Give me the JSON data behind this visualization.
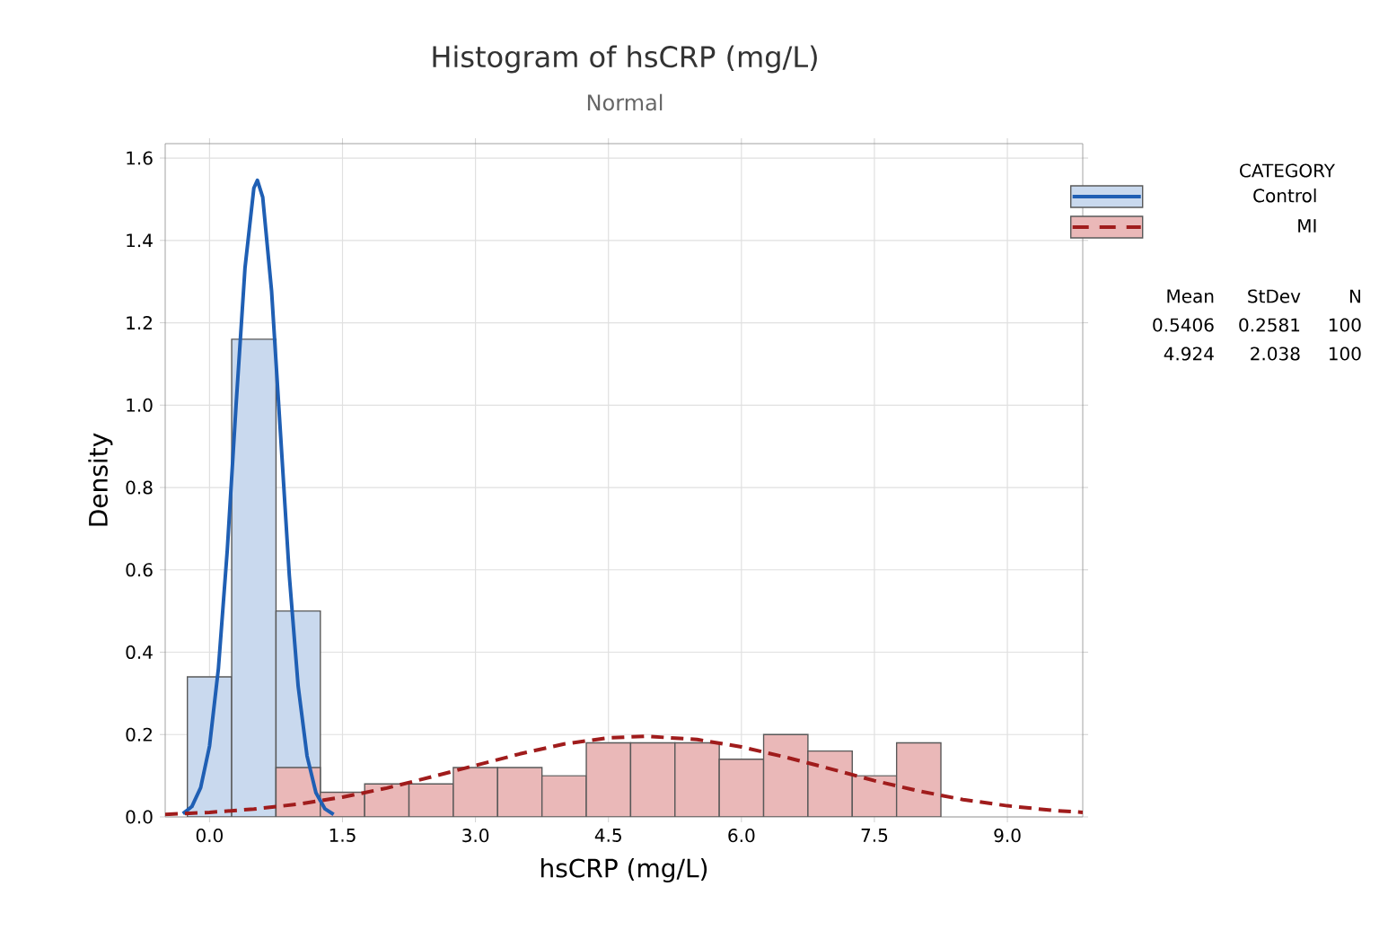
{
  "chart_data": {
    "type": "histogram",
    "title": "Histogram of hsCRP (mg/L)",
    "subtitle": "Normal",
    "xlabel": "hsCRP (mg/L)",
    "ylabel": "Density",
    "legend_title": "CATEGORY",
    "series": [
      {
        "name": "Control",
        "color": "#c9d9ee",
        "bins": [
          -0.25,
          0.25,
          0.75,
          1.25
        ],
        "values": [
          0.34,
          1.16,
          0.5
        ]
      },
      {
        "name": "MI",
        "color": "#eab8b8",
        "bins": [
          0.75,
          1.25,
          1.75,
          2.25,
          2.75,
          3.25,
          3.75,
          4.25,
          4.75,
          5.25,
          5.75,
          6.25,
          6.75,
          7.25,
          7.75,
          8.25
        ],
        "values": [
          0.12,
          0.06,
          0.08,
          0.08,
          0.12,
          0.12,
          0.1,
          0.18,
          0.18,
          0.18,
          0.14,
          0.2,
          0.16,
          0.1,
          0.18
        ]
      },
      {
        "type": "line",
        "color": "#1f5fb4",
        "line_style": "solid",
        "x": [
          -0.3,
          -0.2,
          -0.1,
          0.0,
          0.1,
          0.2,
          0.3,
          0.4,
          0.5,
          0.54,
          0.6,
          0.7,
          0.8,
          0.9,
          1.0,
          1.1,
          1.2,
          1.3,
          1.4
        ],
        "values": [
          0.008,
          0.025,
          0.071,
          0.172,
          0.36,
          0.647,
          1.002,
          1.333,
          1.527,
          1.546,
          1.505,
          1.277,
          0.933,
          0.586,
          0.317,
          0.148,
          0.059,
          0.02,
          0.006
        ]
      },
      {
        "type": "line",
        "color": "#a01c1c",
        "line_style": "dashed",
        "x": [
          -0.5,
          0.0,
          0.5,
          1.0,
          1.5,
          2.0,
          2.5,
          3.0,
          3.5,
          4.0,
          4.5,
          4.92,
          5.5,
          6.0,
          6.5,
          7.0,
          7.5,
          8.0,
          8.5,
          9.0,
          9.5,
          9.85
        ],
        "values": [
          0.006,
          0.011,
          0.019,
          0.031,
          0.048,
          0.07,
          0.097,
          0.125,
          0.153,
          0.177,
          0.192,
          0.196,
          0.188,
          0.17,
          0.145,
          0.117,
          0.088,
          0.063,
          0.042,
          0.027,
          0.016,
          0.011
        ]
      }
    ],
    "xlim": [
      -0.5,
      9.85
    ],
    "ylim": [
      0,
      1.635
    ],
    "xticks": [
      {
        "value": 0,
        "label": "0.0"
      },
      1.5,
      {
        "value": 3,
        "label": "3.0"
      },
      4.5,
      {
        "value": 6,
        "label": "6.0"
      },
      7.5,
      {
        "value": 9,
        "label": "9.0"
      }
    ],
    "yticks": [
      {
        "value": 0,
        "label": "0.0"
      },
      0.2,
      0.4,
      0.6,
      0.8,
      {
        "value": 1,
        "label": "1.0"
      },
      1.2,
      1.4,
      1.6
    ],
    "grid": true,
    "legend": "right",
    "annotations": [
      "Mean",
      "StDev",
      "N",
      "0.5406",
      "0.2581",
      "100",
      "4.924",
      "2.038",
      "100"
    ]
  }
}
